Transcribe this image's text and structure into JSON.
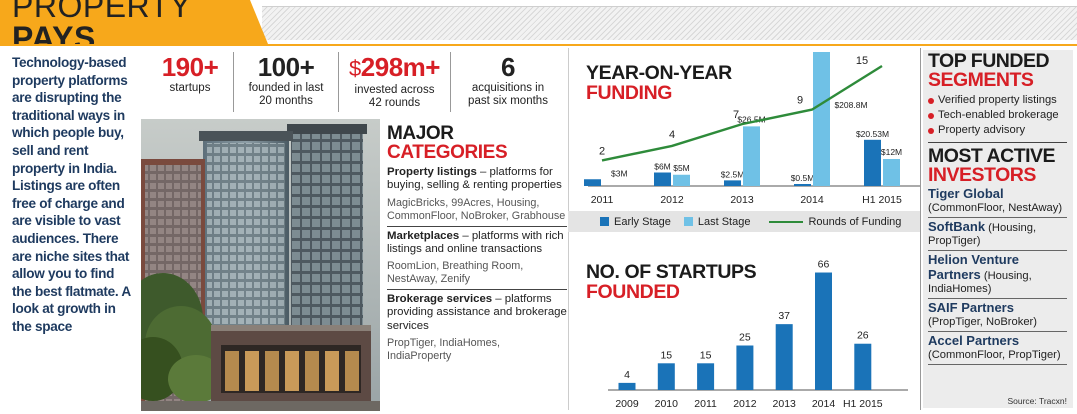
{
  "header": {
    "title_light": "PROPERTY",
    "title_bold": "PAYS"
  },
  "intro": "Technology-based property platforms are disrupting the traditional ways in which people buy, sell and rent property in India. Listings are often free of charge and are visible to vast audiences. There are niche sites that allow you to find the best flatmate. A look at growth in the space",
  "stats": [
    {
      "value": "190+",
      "label": "startups",
      "color": "red"
    },
    {
      "value": "100+",
      "label": "founded in last 20 months",
      "color": "dark"
    },
    {
      "value_prefix": "$",
      "value": "298m+",
      "label": "invested across 42 rounds",
      "color": "red"
    },
    {
      "value": "6",
      "label": "acquisitions in past six months",
      "color": "dark"
    }
  ],
  "categories": {
    "title_a": "MAJOR",
    "title_b": "CATEGORIES",
    "items": [
      {
        "name": "Property listings",
        "desc": " – platforms for buying, selling & renting properties",
        "examples": "MagicBricks, 99Acres, Housing, CommonFloor, NoBroker, Grabhouse"
      },
      {
        "name": "Marketplaces",
        "desc": " – platforms with rich listings and online transactions",
        "examples": "RoomLion, Breathing Room, NestAway, Zenify"
      },
      {
        "name": "Brokerage services",
        "desc": " – platforms providing assistance and brokerage services",
        "examples": "PropTiger, IndiaHomes, IndiaProperty"
      }
    ]
  },
  "funding_chart": {
    "title_a": "YEAR-ON-YEAR",
    "title_b": "FUNDING"
  },
  "startups_chart": {
    "title_a": "NO. OF STARTUPS",
    "title_b": "FOUNDED"
  },
  "legend": {
    "early": "Early Stage",
    "last": "Last Stage",
    "rounds": "Rounds of Funding"
  },
  "colors": {
    "early": "#1a73b8",
    "last": "#6fc1e6",
    "line": "#2e8b3a",
    "red": "#d71f26",
    "orange": "#f7a81b",
    "bar_blue": "#1a73b8"
  },
  "chart_data": [
    {
      "type": "bar",
      "title": "YEAR-ON-YEAR FUNDING",
      "categories": [
        "2011",
        "2012",
        "2013",
        "2014",
        "H1 2015"
      ],
      "series": [
        {
          "name": "Early Stage",
          "values": [
            3,
            6,
            2.5,
            0.5,
            20.53
          ],
          "labels": [
            "$3M",
            "$6M",
            "$2.5M",
            "$0.5M",
            "$20.53M"
          ]
        },
        {
          "name": "Last Stage",
          "values": [
            null,
            5,
            26.5,
            208.8,
            12
          ],
          "labels": [
            "",
            "$5M",
            "$26.5M",
            "$208.8M",
            "$12M"
          ]
        },
        {
          "name": "Rounds of Funding",
          "type": "line",
          "values": [
            2,
            4,
            7,
            9,
            15
          ]
        }
      ],
      "legend": "bottom"
    },
    {
      "type": "bar",
      "title": "NO. OF STARTUPS FOUNDED",
      "categories": [
        "2009",
        "2010",
        "2011",
        "2012",
        "2013",
        "2014",
        "H1 2015"
      ],
      "values": [
        4,
        15,
        15,
        25,
        37,
        66,
        26
      ]
    }
  ],
  "right": {
    "segments_title_a": "TOP FUNDED",
    "segments_title_b": "SEGMENTS",
    "segments": [
      "Verified property listings",
      "Tech-enabled brokerage",
      "Property advisory"
    ],
    "investors_title_a": "MOST ACTIVE",
    "investors_title_b": "INVESTORS",
    "investors": [
      {
        "name": "Tiger Global",
        "detail": "(CommonFloor, NestAway)"
      },
      {
        "name": "SoftBank",
        "detail": " (Housing, PropTiger)"
      },
      {
        "name": "Helion Venture Partners",
        "detail": " (Housing, IndiaHomes)"
      },
      {
        "name": "SAIF Partners",
        "detail": "(PropTiger, NoBroker)"
      },
      {
        "name": "Accel Partners",
        "detail": "(CommonFloor, PropTiger)"
      }
    ],
    "source": "Source: Tracxn!"
  }
}
